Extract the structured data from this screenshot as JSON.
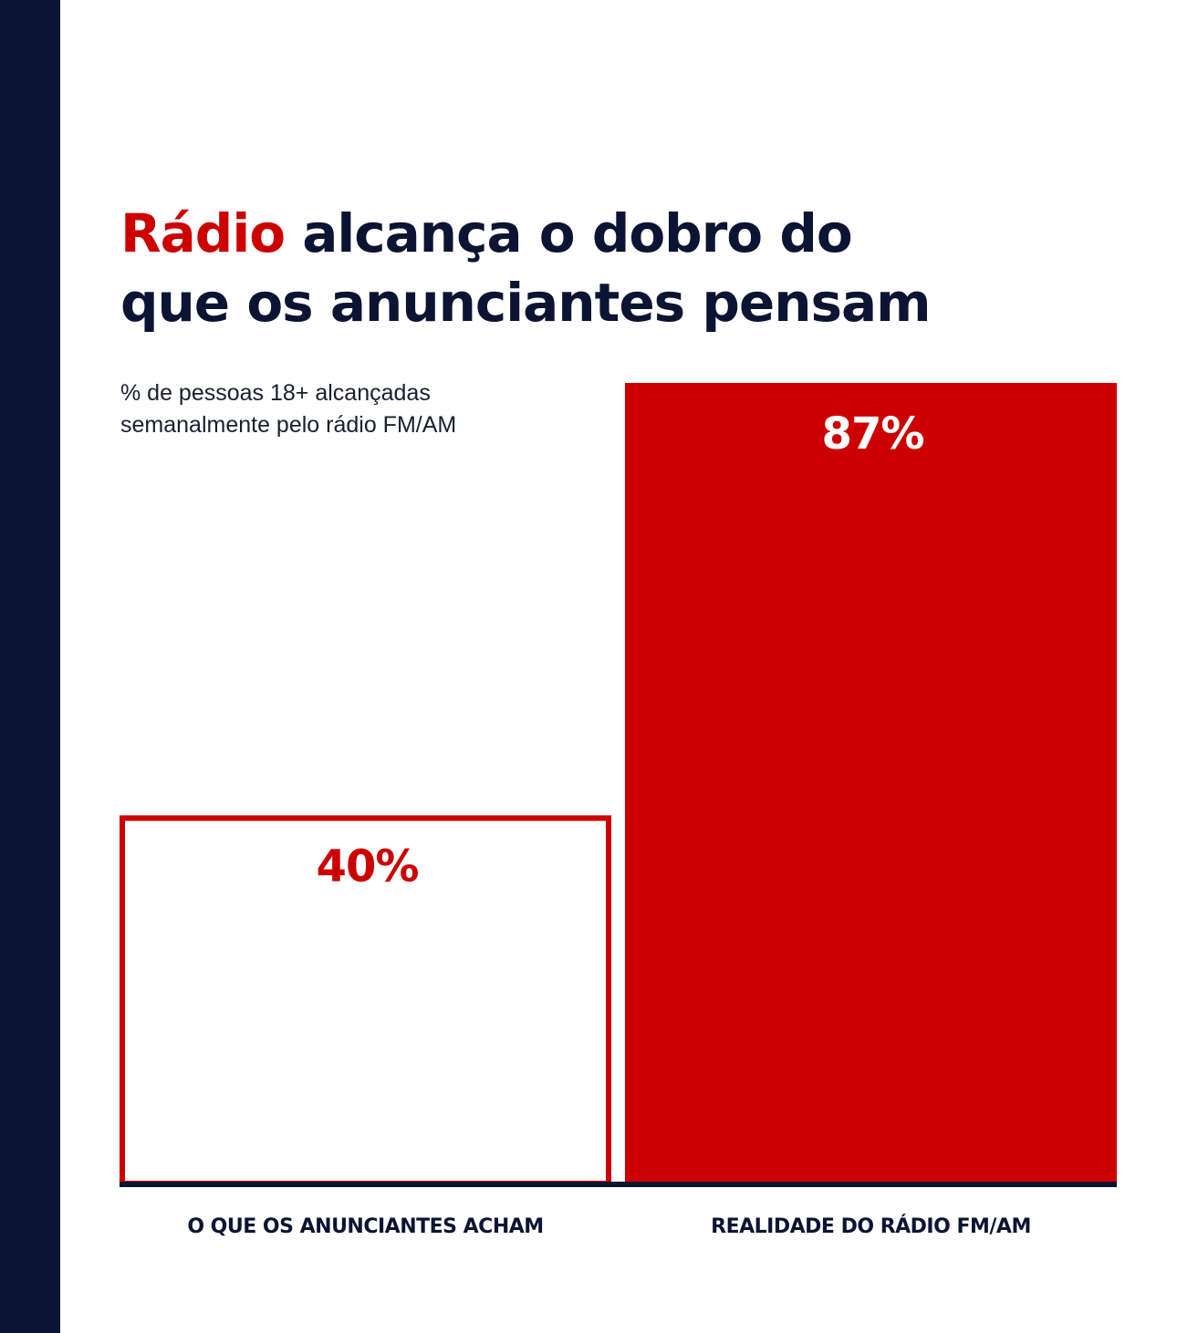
{
  "colors": {
    "accent": "#cc0000",
    "navy": "#0c1433",
    "background": "#ffffff"
  },
  "headline": {
    "highlight": "Rádio",
    "rest": " alcança o dobro do",
    "line2": "que os anunciantes pensam"
  },
  "chart_data": {
    "type": "bar",
    "title": "Rádio alcança o dobro do que os anunciantes pensam",
    "subtitle": "% de pessoas 18+ alcançadas semanalmente pelo rádio FM/AM",
    "subtitle_line1": "% de pessoas 18+ alcançadas",
    "subtitle_line2": "semanalmente pelo rádio FM/AM",
    "categories": [
      "O QUE OS ANUNCIANTES ACHAM",
      "REALIDADE DO RÁDIO FM/AM"
    ],
    "values": [
      40,
      87
    ],
    "value_labels": [
      "40%",
      "87%"
    ],
    "bar_styles": [
      "outline",
      "filled"
    ],
    "unit": "%",
    "ylim": [
      0,
      87
    ],
    "grid": false,
    "legend": "none"
  }
}
